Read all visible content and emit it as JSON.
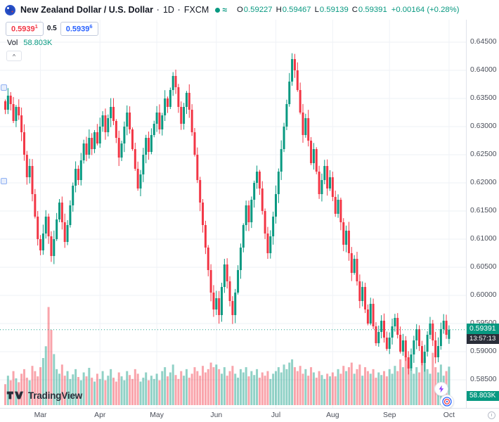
{
  "header": {
    "symbol_title": "New Zealand Dollar / U.S. Dollar",
    "separator": "·",
    "interval": "1D",
    "exchange": "FXCM",
    "ohlc": {
      "o_label": "O",
      "o": "0.59227",
      "h_label": "H",
      "h": "0.59467",
      "l_label": "L",
      "l": "0.59139",
      "c_label": "C",
      "c": "0.59391",
      "change": "+0.00164 (+0.28%)"
    },
    "icons": {
      "data_mode_glyph": "≈"
    },
    "up_color": "#089981",
    "down_color": "#f23645"
  },
  "trade_panel": {
    "sell_price": "0.5939",
    "sell_sup": "1",
    "spread": "0.5",
    "buy_price": "0.5939",
    "buy_sup": "6"
  },
  "volume_row": {
    "label": "Vol",
    "value": "58.803K"
  },
  "collapse_button": {
    "glyph": "^"
  },
  "price_tag": {
    "value": "0.59391",
    "countdown": "13:57:13"
  },
  "volume_tag": {
    "value": "58.803K"
  },
  "logo": {
    "text": "TradingView"
  },
  "chart_data": {
    "type": "candlestick_with_volume",
    "symbol": "New Zealand Dollar / U.S. Dollar",
    "ticker": "NZDUSD",
    "interval": "1D",
    "exchange": "FXCM",
    "price_range": [
      0.585,
      0.645
    ],
    "grid_step": 0.005,
    "price_axis_labels": [
      "0.64500",
      "0.64000",
      "0.63500",
      "0.63000",
      "0.62500",
      "0.62000",
      "0.61500",
      "0.61000",
      "0.60500",
      "0.60000",
      "0.59500",
      "0.59000",
      "0.58500"
    ],
    "months": [
      "Mar",
      "Apr",
      "May",
      "Jun",
      "Jul",
      "Aug",
      "Sep",
      "Oct"
    ],
    "month_start_indices": [
      13,
      35,
      56,
      78,
      100,
      121,
      142,
      164
    ],
    "current_price": 0.59391,
    "current_volume_label": "58.803K",
    "last_candle": {
      "open": 0.59227,
      "high": 0.59467,
      "low": 0.59139,
      "close": 0.59391
    },
    "up_color": "#089981",
    "down_color": "#f23645",
    "closes": [
      0.633,
      0.6355,
      0.634,
      0.631,
      0.6335,
      0.632,
      0.629,
      0.625,
      0.621,
      0.623,
      0.618,
      0.614,
      0.61,
      0.608,
      0.611,
      0.614,
      0.6105,
      0.607,
      0.61,
      0.6135,
      0.6165,
      0.613,
      0.6095,
      0.6125,
      0.616,
      0.6195,
      0.6225,
      0.6205,
      0.624,
      0.627,
      0.625,
      0.628,
      0.626,
      0.629,
      0.627,
      0.63,
      0.632,
      0.629,
      0.6315,
      0.6335,
      0.631,
      0.628,
      0.6245,
      0.627,
      0.63,
      0.6325,
      0.6295,
      0.626,
      0.6225,
      0.619,
      0.6215,
      0.625,
      0.628,
      0.6255,
      0.6285,
      0.6305,
      0.6325,
      0.6295,
      0.632,
      0.635,
      0.6335,
      0.6365,
      0.639,
      0.637,
      0.6335,
      0.6305,
      0.6335,
      0.636,
      0.633,
      0.629,
      0.625,
      0.6205,
      0.6165,
      0.6125,
      0.6085,
      0.6045,
      0.6005,
      0.5975,
      0.5995,
      0.5965,
      0.6015,
      0.6055,
      0.6025,
      0.599,
      0.5965,
      0.6005,
      0.6045,
      0.6085,
      0.6125,
      0.616,
      0.613,
      0.617,
      0.62,
      0.622,
      0.619,
      0.615,
      0.611,
      0.6075,
      0.6105,
      0.614,
      0.618,
      0.622,
      0.626,
      0.63,
      0.634,
      0.638,
      0.642,
      0.64,
      0.6365,
      0.6325,
      0.6285,
      0.6315,
      0.6275,
      0.6235,
      0.626,
      0.622,
      0.618,
      0.6205,
      0.623,
      0.619,
      0.621,
      0.6175,
      0.6145,
      0.617,
      0.613,
      0.609,
      0.6115,
      0.6075,
      0.604,
      0.6065,
      0.6025,
      0.599,
      0.6015,
      0.5975,
      0.595,
      0.5985,
      0.5945,
      0.5915,
      0.5935,
      0.5955,
      0.5925,
      0.5905,
      0.5925,
      0.5945,
      0.596,
      0.593,
      0.59,
      0.592,
      0.589,
      0.587,
      0.5895,
      0.592,
      0.594,
      0.591,
      0.588,
      0.59,
      0.593,
      0.595,
      0.592,
      0.589,
      0.591,
      0.594,
      0.5955,
      0.593,
      0.59391
    ],
    "volumes_k": [
      32,
      45,
      38,
      52,
      41,
      35,
      48,
      55,
      42,
      38,
      60,
      52,
      44,
      58,
      72,
      90,
      150,
      115,
      78,
      55,
      48,
      62,
      45,
      52,
      40,
      47,
      55,
      43,
      38,
      50,
      44,
      57,
      42,
      36,
      48,
      40,
      52,
      38,
      45,
      55,
      42,
      36,
      50,
      44,
      38,
      52,
      46,
      40,
      55,
      48,
      36,
      42,
      50,
      38,
      45,
      40,
      48,
      38,
      52,
      58,
      44,
      50,
      62,
      46,
      40,
      52,
      45,
      55,
      42,
      48,
      58,
      52,
      45,
      60,
      50,
      55,
      65,
      58,
      62,
      55,
      48,
      58,
      45,
      52,
      60,
      48,
      42,
      55,
      50,
      58,
      44,
      52,
      46,
      55,
      42,
      50,
      45,
      52,
      40,
      48,
      52,
      58,
      50,
      62,
      55,
      65,
      70,
      58,
      52,
      60,
      48,
      55,
      45,
      58,
      50,
      42,
      52,
      46,
      40,
      48,
      44,
      50,
      44,
      55,
      48,
      60,
      52,
      58,
      65,
      48,
      55,
      62,
      45,
      58,
      52,
      48,
      55,
      42,
      50,
      46,
      52,
      44,
      55,
      48,
      60,
      52,
      70,
      58,
      75,
      62,
      55,
      48,
      58,
      50,
      65,
      72,
      55,
      48,
      80,
      58,
      50,
      62,
      45,
      52,
      58.8
    ]
  }
}
